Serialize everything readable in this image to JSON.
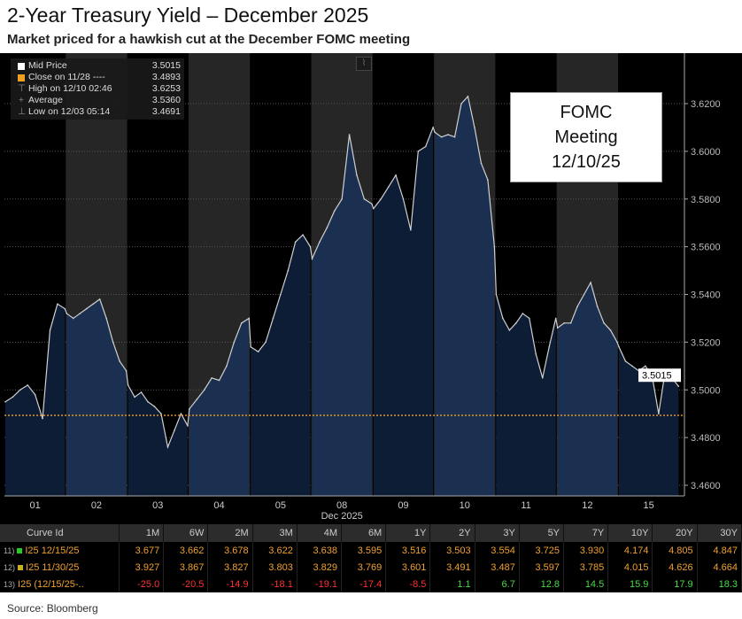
{
  "title": "2-Year Treasury Yield – December 2025",
  "subtitle": "Market priced for a hawkish cut at the December FOMC meeting",
  "legend": {
    "mid_price": {
      "label": "Mid Price",
      "value": "3.5015"
    },
    "close": {
      "label": "Close on 11/28 ----",
      "value": "3.4893"
    },
    "high": {
      "label": "High on 12/10 02:46",
      "value": "3.6253"
    },
    "average": {
      "label": "Average",
      "value": "3.5360"
    },
    "low": {
      "label": "Low on 12/03 05:14",
      "value": "3.4691"
    }
  },
  "annotation": {
    "line1": "FOMC",
    "line2": "Meeting",
    "line3": "12/10/25"
  },
  "chart_data": {
    "type": "area",
    "title": "2-Year Treasury Yield – December 2025",
    "xlabel": "Dec 2025",
    "ylabel": "",
    "ylim": [
      3.455,
      3.6405
    ],
    "yticks": [
      "3.4600",
      "3.4800",
      "3.5000",
      "3.5200",
      "3.5400",
      "3.5600",
      "3.5800",
      "3.6000",
      "3.6200"
    ],
    "ytick_values": [
      3.46,
      3.48,
      3.5,
      3.52,
      3.54,
      3.56,
      3.58,
      3.6,
      3.62
    ],
    "last_price_label": "3.5015",
    "last_price": 3.5015,
    "close_reference": 3.4893,
    "colors": {
      "line": "#d0d0d0",
      "fill_light": "#1b3050",
      "fill_dark": "#0e1d36",
      "close_line": "#f0a020",
      "band": "#262626"
    },
    "days": [
      {
        "label": "01",
        "values": [
          3.495,
          3.497,
          3.5,
          3.502,
          3.498,
          3.488,
          3.525,
          3.536,
          3.534
        ]
      },
      {
        "label": "02",
        "values": [
          3.532,
          3.53,
          3.532,
          3.534,
          3.536,
          3.538,
          3.53,
          3.52,
          3.512,
          3.508
        ]
      },
      {
        "label": "03",
        "values": [
          3.502,
          3.497,
          3.499,
          3.495,
          3.493,
          3.49,
          3.476,
          3.483,
          3.49,
          3.485
        ]
      },
      {
        "label": "04",
        "values": [
          3.492,
          3.496,
          3.5,
          3.505,
          3.504,
          3.51,
          3.52,
          3.528,
          3.53
        ]
      },
      {
        "label": "05",
        "values": [
          3.518,
          3.516,
          3.52,
          3.53,
          3.54,
          3.55,
          3.562,
          3.565,
          3.56
        ]
      },
      {
        "label": "08",
        "values": [
          3.555,
          3.562,
          3.568,
          3.575,
          3.58,
          3.607,
          3.59,
          3.58,
          3.578
        ]
      },
      {
        "label": "09",
        "values": [
          3.576,
          3.58,
          3.585,
          3.59,
          3.58,
          3.567,
          3.6,
          3.602,
          3.61
        ]
      },
      {
        "label": "10",
        "values": [
          3.608,
          3.606,
          3.607,
          3.606,
          3.62,
          3.623,
          3.61,
          3.595,
          3.588,
          3.56
        ]
      },
      {
        "label": "11",
        "values": [
          3.54,
          3.53,
          3.525,
          3.528,
          3.532,
          3.53,
          3.515,
          3.505,
          3.518,
          3.53
        ]
      },
      {
        "label": "12",
        "values": [
          3.526,
          3.528,
          3.528,
          3.535,
          3.54,
          3.545,
          3.535,
          3.528,
          3.525,
          3.52
        ]
      },
      {
        "label": "15",
        "values": [
          3.518,
          3.512,
          3.51,
          3.508,
          3.51,
          3.506,
          3.49,
          3.508,
          3.505,
          3.5015
        ]
      }
    ]
  },
  "table": {
    "headers": [
      "Curve Id",
      "1M",
      "6W",
      "2M",
      "3M",
      "4M",
      "6M",
      "1Y",
      "2Y",
      "3Y",
      "5Y",
      "7Y",
      "10Y",
      "20Y",
      "30Y"
    ],
    "rows": [
      {
        "num": "11)",
        "id": "I25 12/15/25",
        "marker": "#22cc22",
        "values": [
          "3.677",
          "3.662",
          "3.678",
          "3.622",
          "3.638",
          "3.595",
          "3.516",
          "3.503",
          "3.554",
          "3.725",
          "3.930",
          "4.174",
          "4.805",
          "4.847"
        ]
      },
      {
        "num": "12)",
        "id": "I25 11/30/25",
        "marker": "#c8b020",
        "values": [
          "3.927",
          "3.867",
          "3.827",
          "3.803",
          "3.829",
          "3.769",
          "3.601",
          "3.491",
          "3.487",
          "3.597",
          "3.785",
          "4.015",
          "4.626",
          "4.664"
        ]
      },
      {
        "num": "13)",
        "id": "I25 (12/15/25-..",
        "marker": "",
        "values": [
          "-25.0",
          "-20.5",
          "-14.9",
          "-18.1",
          "-19.1",
          "-17.4",
          "-8.5",
          "1.1",
          "6.7",
          "12.8",
          "14.5",
          "15.9",
          "17.9",
          "18.3"
        ]
      }
    ]
  },
  "source": "Source: Bloomberg"
}
